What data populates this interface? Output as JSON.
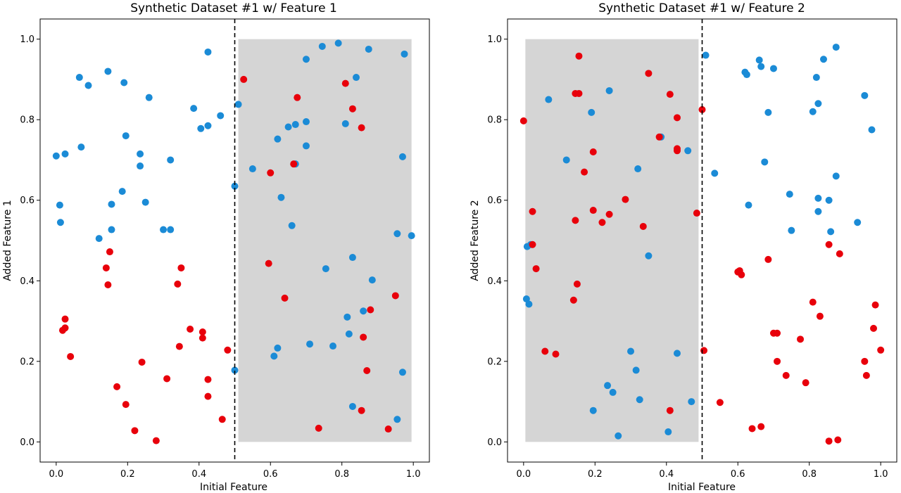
{
  "colors": {
    "blue": "#1b8bd6",
    "red": "#e8000b",
    "shade": "#d3d3d3",
    "divider": "#000000"
  },
  "chart_data": [
    {
      "type": "scatter",
      "title": "Synthetic Dataset #1 w/ Feature 1",
      "xlabel": "Initial Feature",
      "ylabel": "Added Feature 1",
      "xlim": [
        -0.045,
        1.045
      ],
      "ylim": [
        -0.05,
        1.05
      ],
      "xticks": [
        "0.0",
        "0.2",
        "0.4",
        "0.6",
        "0.8",
        "1.0"
      ],
      "yticks": [
        "0.0",
        "0.2",
        "0.4",
        "0.6",
        "0.8",
        "1.0"
      ],
      "grid": false,
      "divider_x": 0.5,
      "shaded_region": {
        "x": [
          0.51,
          0.995
        ],
        "y": [
          0.0,
          1.0
        ]
      },
      "series": [
        {
          "color": "blue",
          "points": [
            [
              0.0,
              0.71
            ],
            [
              0.025,
              0.715
            ],
            [
              0.01,
              0.588
            ],
            [
              0.012,
              0.545
            ],
            [
              0.065,
              0.905
            ],
            [
              0.09,
              0.885
            ],
            [
              0.07,
              0.732
            ],
            [
              0.145,
              0.92
            ],
            [
              0.19,
              0.892
            ],
            [
              0.195,
              0.76
            ],
            [
              0.26,
              0.855
            ],
            [
              0.235,
              0.715
            ],
            [
              0.235,
              0.685
            ],
            [
              0.32,
              0.7
            ],
            [
              0.185,
              0.622
            ],
            [
              0.155,
              0.59
            ],
            [
              0.25,
              0.595
            ],
            [
              0.155,
              0.527
            ],
            [
              0.12,
              0.505
            ],
            [
              0.3,
              0.527
            ],
            [
              0.32,
              0.527
            ],
            [
              0.425,
              0.968
            ],
            [
              0.385,
              0.828
            ],
            [
              0.405,
              0.778
            ],
            [
              0.425,
              0.785
            ],
            [
              0.46,
              0.81
            ],
            [
              0.5,
              0.635
            ],
            [
              0.51,
              0.838
            ],
            [
              0.5,
              0.178
            ],
            [
              0.55,
              0.678
            ],
            [
              0.62,
              0.752
            ],
            [
              0.63,
              0.607
            ],
            [
              0.65,
              0.782
            ],
            [
              0.67,
              0.788
            ],
            [
              0.7,
              0.95
            ],
            [
              0.7,
              0.795
            ],
            [
              0.7,
              0.735
            ],
            [
              0.67,
              0.69
            ],
            [
              0.66,
              0.537
            ],
            [
              0.745,
              0.982
            ],
            [
              0.79,
              0.99
            ],
            [
              0.875,
              0.975
            ],
            [
              0.84,
              0.905
            ],
            [
              0.81,
              0.79
            ],
            [
              0.975,
              0.963
            ],
            [
              0.97,
              0.708
            ],
            [
              0.955,
              0.517
            ],
            [
              0.995,
              0.512
            ],
            [
              0.83,
              0.458
            ],
            [
              0.755,
              0.43
            ],
            [
              0.885,
              0.402
            ],
            [
              0.86,
              0.325
            ],
            [
              0.815,
              0.31
            ],
            [
              0.82,
              0.268
            ],
            [
              0.775,
              0.238
            ],
            [
              0.71,
              0.243
            ],
            [
              0.62,
              0.233
            ],
            [
              0.61,
              0.213
            ],
            [
              0.97,
              0.173
            ],
            [
              0.83,
              0.088
            ],
            [
              0.955,
              0.056
            ]
          ]
        },
        {
          "color": "red",
          "points": [
            [
              0.525,
              0.9
            ],
            [
              0.675,
              0.855
            ],
            [
              0.81,
              0.89
            ],
            [
              0.83,
              0.827
            ],
            [
              0.855,
              0.78
            ],
            [
              0.6,
              0.668
            ],
            [
              0.665,
              0.69
            ],
            [
              0.595,
              0.443
            ],
            [
              0.64,
              0.357
            ],
            [
              0.48,
              0.228
            ],
            [
              0.15,
              0.472
            ],
            [
              0.14,
              0.432
            ],
            [
              0.145,
              0.39
            ],
            [
              0.35,
              0.432
            ],
            [
              0.34,
              0.392
            ],
            [
              0.025,
              0.305
            ],
            [
              0.025,
              0.283
            ],
            [
              0.018,
              0.277
            ],
            [
              0.04,
              0.212
            ],
            [
              0.375,
              0.28
            ],
            [
              0.41,
              0.273
            ],
            [
              0.41,
              0.258
            ],
            [
              0.345,
              0.237
            ],
            [
              0.24,
              0.198
            ],
            [
              0.31,
              0.157
            ],
            [
              0.425,
              0.155
            ],
            [
              0.17,
              0.137
            ],
            [
              0.195,
              0.093
            ],
            [
              0.425,
              0.113
            ],
            [
              0.465,
              0.056
            ],
            [
              0.22,
              0.028
            ],
            [
              0.28,
              0.003
            ],
            [
              0.88,
              0.328
            ],
            [
              0.86,
              0.26
            ],
            [
              0.87,
              0.177
            ],
            [
              0.855,
              0.078
            ],
            [
              0.735,
              0.034
            ],
            [
              0.93,
              0.032
            ],
            [
              0.95,
              0.363
            ]
          ]
        }
      ]
    },
    {
      "type": "scatter",
      "title": "Synthetic Dataset #1 w/ Feature 2",
      "xlabel": "Initial Feature",
      "ylabel": "Added Feature 2",
      "xlim": [
        -0.045,
        1.045
      ],
      "ylim": [
        -0.05,
        1.05
      ],
      "xticks": [
        "0.0",
        "0.2",
        "0.4",
        "0.6",
        "0.8",
        "1.0"
      ],
      "yticks": [
        "0.0",
        "0.2",
        "0.4",
        "0.6",
        "0.8",
        "1.0"
      ],
      "grid": false,
      "divider_x": 0.5,
      "shaded_region": {
        "x": [
          0.005,
          0.49
        ],
        "y": [
          0.0,
          1.0
        ]
      },
      "series": [
        {
          "color": "blue",
          "points": [
            [
              0.07,
              0.85
            ],
            [
              0.19,
              0.818
            ],
            [
              0.24,
              0.872
            ],
            [
              0.12,
              0.7
            ],
            [
              0.32,
              0.678
            ],
            [
              0.385,
              0.757
            ],
            [
              0.46,
              0.723
            ],
            [
              0.02,
              0.49
            ],
            [
              0.01,
              0.485
            ],
            [
              0.008,
              0.355
            ],
            [
              0.015,
              0.342
            ],
            [
              0.35,
              0.462
            ],
            [
              0.3,
              0.225
            ],
            [
              0.315,
              0.178
            ],
            [
              0.235,
              0.14
            ],
            [
              0.25,
              0.123
            ],
            [
              0.325,
              0.105
            ],
            [
              0.195,
              0.078
            ],
            [
              0.265,
              0.015
            ],
            [
              0.43,
              0.22
            ],
            [
              0.405,
              0.025
            ],
            [
              0.47,
              0.1
            ],
            [
              0.51,
              0.96
            ],
            [
              0.535,
              0.667
            ],
            [
              0.62,
              0.918
            ],
            [
              0.625,
              0.912
            ],
            [
              0.66,
              0.948
            ],
            [
              0.665,
              0.932
            ],
            [
              0.7,
              0.927
            ],
            [
              0.63,
              0.588
            ],
            [
              0.675,
              0.695
            ],
            [
              0.685,
              0.818
            ],
            [
              0.745,
              0.615
            ],
            [
              0.75,
              0.525
            ],
            [
              0.81,
              0.82
            ],
            [
              0.82,
              0.905
            ],
            [
              0.825,
              0.84
            ],
            [
              0.84,
              0.95
            ],
            [
              0.875,
              0.98
            ],
            [
              0.825,
              0.605
            ],
            [
              0.825,
              0.572
            ],
            [
              0.855,
              0.6
            ],
            [
              0.875,
              0.66
            ],
            [
              0.86,
              0.522
            ],
            [
              0.935,
              0.545
            ],
            [
              0.955,
              0.86
            ],
            [
              0.975,
              0.775
            ]
          ]
        },
        {
          "color": "red",
          "points": [
            [
              0.0,
              0.797
            ],
            [
              0.155,
              0.958
            ],
            [
              0.145,
              0.865
            ],
            [
              0.155,
              0.865
            ],
            [
              0.35,
              0.915
            ],
            [
              0.41,
              0.863
            ],
            [
              0.43,
              0.805
            ],
            [
              0.195,
              0.72
            ],
            [
              0.17,
              0.67
            ],
            [
              0.38,
              0.757
            ],
            [
              0.43,
              0.728
            ],
            [
              0.43,
              0.723
            ],
            [
              0.5,
              0.825
            ],
            [
              0.485,
              0.568
            ],
            [
              0.025,
              0.572
            ],
            [
              0.025,
              0.49
            ],
            [
              0.035,
              0.43
            ],
            [
              0.145,
              0.55
            ],
            [
              0.195,
              0.575
            ],
            [
              0.22,
              0.545
            ],
            [
              0.24,
              0.565
            ],
            [
              0.285,
              0.602
            ],
            [
              0.335,
              0.535
            ],
            [
              0.15,
              0.392
            ],
            [
              0.14,
              0.352
            ],
            [
              0.06,
              0.225
            ],
            [
              0.09,
              0.218
            ],
            [
              0.41,
              0.078
            ],
            [
              0.505,
              0.227
            ],
            [
              0.55,
              0.098
            ],
            [
              0.6,
              0.422
            ],
            [
              0.605,
              0.425
            ],
            [
              0.61,
              0.415
            ],
            [
              0.685,
              0.453
            ],
            [
              0.64,
              0.033
            ],
            [
              0.665,
              0.038
            ],
            [
              0.7,
              0.27
            ],
            [
              0.71,
              0.27
            ],
            [
              0.71,
              0.2
            ],
            [
              0.735,
              0.165
            ],
            [
              0.775,
              0.255
            ],
            [
              0.79,
              0.147
            ],
            [
              0.81,
              0.347
            ],
            [
              0.83,
              0.312
            ],
            [
              0.855,
              0.49
            ],
            [
              0.885,
              0.467
            ],
            [
              0.855,
              0.002
            ],
            [
              0.88,
              0.005
            ],
            [
              0.955,
              0.2
            ],
            [
              0.96,
              0.165
            ],
            [
              0.98,
              0.282
            ],
            [
              0.985,
              0.34
            ],
            [
              1.0,
              0.228
            ]
          ]
        }
      ]
    }
  ]
}
